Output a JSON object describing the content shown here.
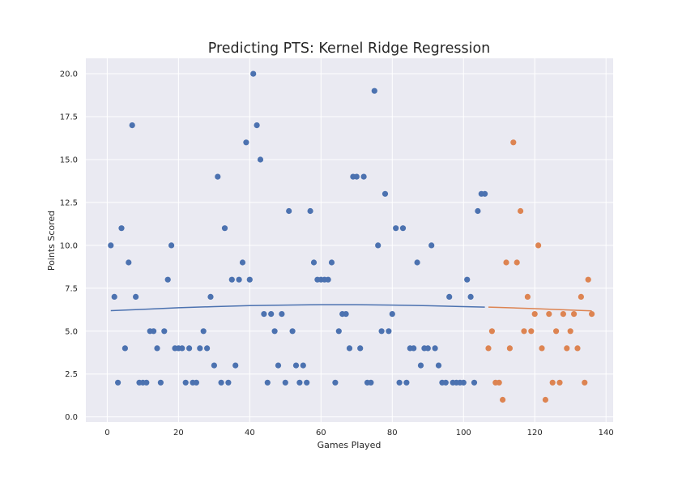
{
  "chart_data": {
    "type": "scatter",
    "title": "Predicting PTS: Kernel Ridge Regression",
    "xlabel": "Games Played",
    "ylabel": "Points Scored",
    "xlim": [
      -6,
      142
    ],
    "ylim": [
      -0.3,
      20.9
    ],
    "xticks": [
      0,
      20,
      40,
      60,
      80,
      100,
      120,
      140
    ],
    "xtick_labels": [
      "0",
      "20",
      "40",
      "60",
      "80",
      "100",
      "120",
      "140"
    ],
    "yticks": [
      0,
      2.5,
      5,
      7.5,
      10,
      12.5,
      15,
      17.5,
      20
    ],
    "ytick_labels": [
      "0.0",
      "2.5",
      "5.0",
      "7.5",
      "10.0",
      "12.5",
      "15.0",
      "17.5",
      "20.0"
    ],
    "grid": true,
    "colors": {
      "train": "#4c72b0",
      "test": "#dd8452",
      "background": "#eaeaf2",
      "grid": "#ffffff"
    },
    "series": [
      {
        "key": "train",
        "x": [
          1,
          2,
          3,
          4,
          5,
          6,
          7,
          8,
          9,
          10,
          11,
          12,
          13,
          14,
          15,
          16,
          17,
          18,
          19,
          20,
          21,
          22,
          23,
          24,
          25,
          26,
          27,
          28,
          29,
          30,
          31,
          32,
          33,
          34,
          35,
          36,
          37,
          38,
          39,
          40,
          41,
          42,
          43,
          44,
          45,
          46,
          47,
          48,
          49,
          50,
          51,
          52,
          53,
          54,
          55,
          56,
          57,
          58,
          59,
          60,
          61,
          62,
          63,
          64,
          65,
          66,
          67,
          68,
          69,
          70,
          71,
          72,
          73,
          74,
          75,
          76,
          77,
          78,
          79,
          80,
          81,
          82,
          83,
          84,
          85,
          86,
          87,
          88,
          89,
          90,
          91,
          92,
          93,
          94,
          95,
          96,
          97,
          98,
          99,
          100,
          101,
          102,
          103,
          104,
          105,
          106
        ],
        "y": [
          10,
          7,
          2,
          11,
          4,
          9,
          17,
          7,
          2,
          2,
          2,
          5,
          5,
          4,
          2,
          5,
          8,
          10,
          4,
          4,
          4,
          2,
          4,
          2,
          2,
          4,
          5,
          4,
          7,
          3,
          14,
          2,
          11,
          2,
          8,
          3,
          8,
          9,
          16,
          8,
          20,
          17,
          15,
          6,
          2,
          6,
          5,
          3,
          6,
          2,
          12,
          5,
          3,
          2,
          3,
          2,
          12,
          9,
          8,
          8,
          8,
          8,
          9,
          2,
          5,
          6,
          6,
          4,
          14,
          14,
          4,
          14,
          2,
          2,
          19,
          10,
          5,
          13,
          5,
          6,
          11,
          2,
          11,
          2,
          4,
          4,
          9,
          3,
          4,
          4,
          10,
          4,
          3,
          2,
          2,
          7,
          2,
          2,
          2,
          2,
          8,
          7,
          2,
          12,
          13,
          13
        ]
      },
      {
        "key": "test",
        "x": [
          107,
          108,
          109,
          110,
          111,
          112,
          113,
          114,
          115,
          116,
          117,
          118,
          119,
          120,
          121,
          122,
          123,
          124,
          125,
          126,
          127,
          128,
          129,
          130,
          131,
          132,
          133,
          134,
          135,
          136
        ],
        "y": [
          4,
          5,
          2,
          2,
          1,
          9,
          4,
          16,
          9,
          12,
          5,
          7,
          5,
          6,
          10,
          4,
          1,
          6,
          2,
          5,
          2,
          6,
          4,
          5,
          6,
          4,
          7,
          2,
          8,
          6
        ]
      }
    ],
    "fit_lines": [
      {
        "key": "train_fit",
        "x": [
          1,
          10,
          20,
          30,
          40,
          50,
          60,
          70,
          80,
          90,
          100,
          106
        ],
        "y": [
          6.19,
          6.27,
          6.36,
          6.43,
          6.49,
          6.52,
          6.54,
          6.54,
          6.52,
          6.48,
          6.43,
          6.4
        ]
      },
      {
        "key": "test_fit",
        "x": [
          107,
          110,
          115,
          120,
          125,
          130,
          136
        ],
        "y": [
          6.4,
          6.38,
          6.35,
          6.31,
          6.27,
          6.23,
          6.18
        ]
      }
    ]
  }
}
